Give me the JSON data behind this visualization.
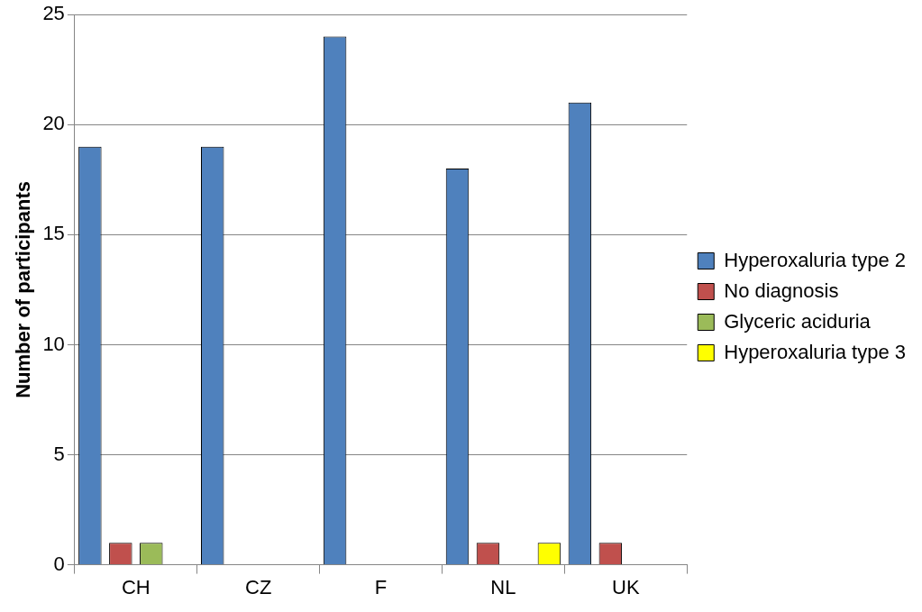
{
  "chart_data": {
    "type": "bar",
    "ylabel": "Number of participants",
    "categories": [
      "CH",
      "CZ",
      "F",
      "NL",
      "UK"
    ],
    "series": [
      {
        "name": "Hyperoxaluria type 2",
        "color": "#4f81bd",
        "values": [
          19,
          19,
          24,
          18,
          21
        ]
      },
      {
        "name": "No diagnosis",
        "color": "#c0504d",
        "values": [
          1,
          0,
          0,
          1,
          1
        ]
      },
      {
        "name": "Glyceric aciduria",
        "color": "#9bbb59",
        "values": [
          1,
          0,
          0,
          0,
          0
        ]
      },
      {
        "name": "Hyperoxaluria type 3",
        "color": "#ffff00",
        "values": [
          0,
          0,
          0,
          1,
          0
        ]
      }
    ],
    "ylim": [
      0,
      25
    ],
    "yticks": [
      0,
      5,
      10,
      15,
      20,
      25
    ],
    "grid": "y",
    "legend": "right"
  }
}
